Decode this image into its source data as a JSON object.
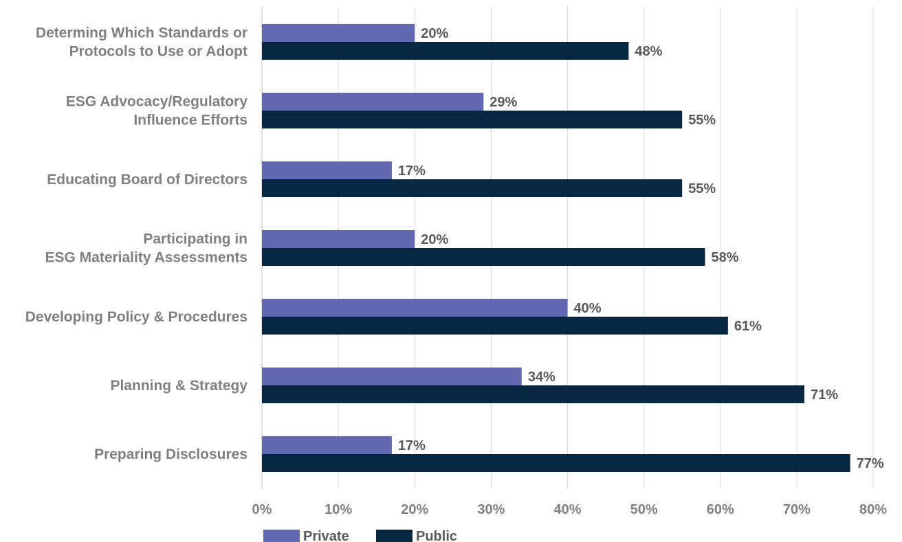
{
  "chart_data": {
    "type": "bar",
    "orientation": "horizontal",
    "categories": [
      [
        "Determing Which Standards or",
        "Protocols to Use or Adopt"
      ],
      [
        "ESG Advocacy/Regulatory",
        "Influence Efforts"
      ],
      [
        "Educating Board of Directors"
      ],
      [
        "Participating in",
        "ESG Materiality Assessments"
      ],
      [
        "Developing Policy & Procedures"
      ],
      [
        "Planning & Strategy"
      ],
      [
        "Preparing Disclosures"
      ]
    ],
    "series": [
      {
        "name": "Private",
        "color": "#6369b1",
        "values": [
          20,
          29,
          17,
          20,
          40,
          34,
          17
        ],
        "labels": [
          "20%",
          "29%",
          "17%",
          "20%",
          "40%",
          "34%",
          "17%"
        ]
      },
      {
        "name": "Public",
        "color": "#082841",
        "values": [
          48,
          55,
          55,
          58,
          61,
          71,
          77
        ],
        "labels": [
          "48%",
          "55%",
          "55%",
          "58%",
          "61%",
          "71%",
          "77%"
        ]
      }
    ],
    "xlim": [
      0,
      80
    ],
    "x_ticks": [
      0,
      10,
      20,
      30,
      40,
      50,
      60,
      70,
      80
    ],
    "x_tick_labels": [
      "0%",
      "10%",
      "20%",
      "30%",
      "40%",
      "50%",
      "60%",
      "70%",
      "80%"
    ],
    "title": "",
    "xlabel": "",
    "ylabel": "",
    "grid": "vertical",
    "legend": "bottom-left",
    "colors": {
      "category_text": "#7f7f7f",
      "label_text": "#595959",
      "gridline": "#d9d9d9",
      "axis": "#bfbfbf"
    }
  }
}
